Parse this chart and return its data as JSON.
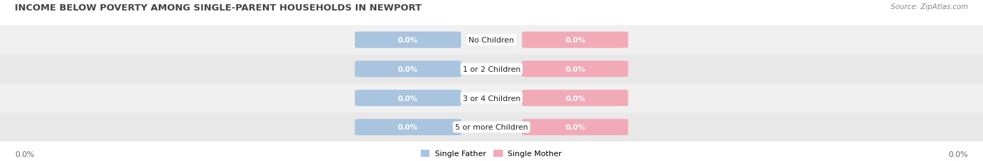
{
  "title": "INCOME BELOW POVERTY AMONG SINGLE-PARENT HOUSEHOLDS IN NEWPORT",
  "source": "Source: ZipAtlas.com",
  "categories": [
    "No Children",
    "1 or 2 Children",
    "3 or 4 Children",
    "5 or more Children"
  ],
  "single_father_values": [
    0.0,
    0.0,
    0.0,
    0.0
  ],
  "single_mother_values": [
    0.0,
    0.0,
    0.0,
    0.0
  ],
  "father_color": "#a8c4e0",
  "mother_color": "#f4a8b8",
  "row_bg_color": "#f0f0f0",
  "row_bg_color_alt": "#e8e8e8",
  "father_bar_color": "#a8c4df",
  "mother_bar_color": "#f2aab9",
  "title_fontsize": 9.5,
  "source_fontsize": 7.5,
  "label_fontsize": 7.5,
  "tick_fontsize": 8,
  "legend_fontsize": 8,
  "background_color": "#ffffff",
  "axis_label_left": "0.0%",
  "axis_label_right": "0.0%"
}
